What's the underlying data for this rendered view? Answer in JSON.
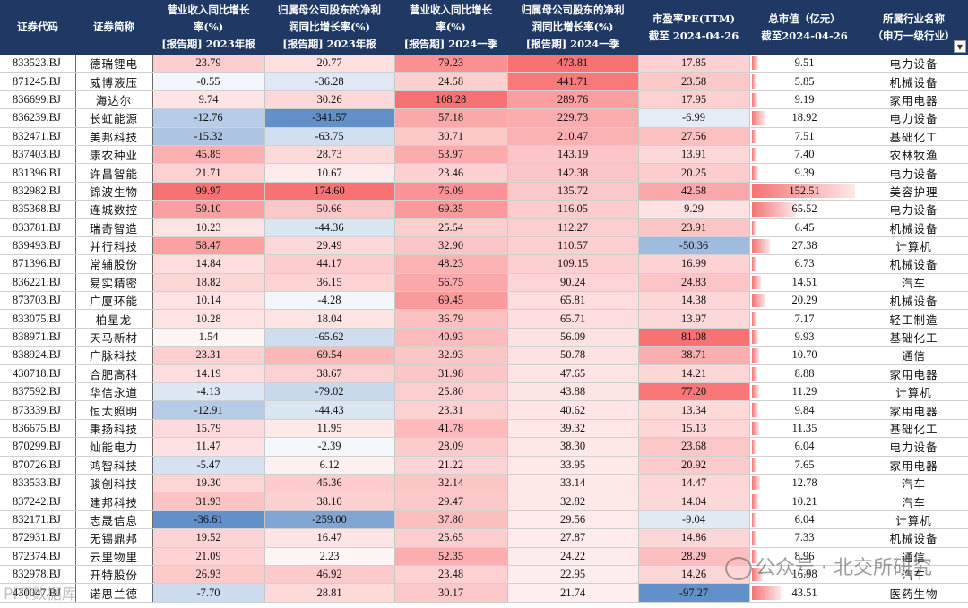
{
  "headers": [
    "证券代码",
    "证券简称",
    "营业收入同比增长率(%) [报告期] 2023年报",
    "归属母公司股东的净利润同比增长率(%) [报告期] 2023年报",
    "营业收入同比增长率(%) [报告期] 2024一季",
    "归属母公司股东的净利润同比增长率(%) [报告期] 2024一季",
    "市盈率PE(TTM) 截至 2024-04-26",
    "总市值（亿元） 截至2024-04-26",
    "所属行业名称 （申万一级行业）"
  ],
  "header_lines": [
    [
      "证券代码"
    ],
    [
      "证券简称"
    ],
    [
      "营业收入同比增长",
      "率(%)",
      "[报告期] 2023年报"
    ],
    [
      "归属母公司股东的净利",
      "润同比增长率(%)",
      "[报告期] 2023年报"
    ],
    [
      "营业收入同比增长",
      "率(%)",
      "[报告期] 2024一季"
    ],
    [
      "归属母公司股东的净利",
      "润同比增长率(%)",
      "[报告期] 2024一季"
    ],
    [
      "市盈率PE(TTM)",
      "截至 2024-04-26"
    ],
    [
      "总市值（亿元）",
      "截至2024-04-26"
    ],
    [
      "所属行业名称",
      "（申万一级行业）"
    ]
  ],
  "colors": {
    "header_bg": "#1f3864",
    "pos": "#f8696b",
    "neg": "#5a8ac6",
    "cap_bar": "#f26b6b"
  },
  "rows": [
    [
      "833523.BJ",
      "德瑞锂电",
      "23.79",
      "20.77",
      "79.23",
      "473.81",
      "17.85",
      "9.51",
      "电力设备"
    ],
    [
      "871245.BJ",
      "威博液压",
      "-0.55",
      "-36.28",
      "24.58",
      "441.71",
      "23.58",
      "5.85",
      "机械设备"
    ],
    [
      "836699.BJ",
      "海达尔",
      "9.74",
      "30.26",
      "108.28",
      "289.76",
      "17.95",
      "9.19",
      "家用电器"
    ],
    [
      "836239.BJ",
      "长虹能源",
      "-12.76",
      "-341.57",
      "57.18",
      "229.73",
      "-6.99",
      "18.92",
      "电力设备"
    ],
    [
      "832471.BJ",
      "美邦科技",
      "-15.32",
      "-63.75",
      "30.71",
      "210.47",
      "27.56",
      "7.51",
      "基础化工"
    ],
    [
      "837403.BJ",
      "康农种业",
      "45.85",
      "28.73",
      "53.97",
      "143.19",
      "13.91",
      "7.40",
      "农林牧渔"
    ],
    [
      "831396.BJ",
      "许昌智能",
      "21.71",
      "10.67",
      "23.46",
      "142.38",
      "20.25",
      "9.39",
      "电力设备"
    ],
    [
      "832982.BJ",
      "锦波生物",
      "99.97",
      "174.60",
      "76.09",
      "135.72",
      "42.58",
      "152.51",
      "美容护理"
    ],
    [
      "835368.BJ",
      "连城数控",
      "59.10",
      "50.66",
      "69.35",
      "116.05",
      "9.29",
      "65.52",
      "电力设备"
    ],
    [
      "833781.BJ",
      "瑞奇智造",
      "10.23",
      "-44.36",
      "25.54",
      "112.27",
      "23.91",
      "6.45",
      "机械设备"
    ],
    [
      "839493.BJ",
      "并行科技",
      "58.47",
      "29.49",
      "32.90",
      "110.57",
      "-50.36",
      "27.38",
      "计算机"
    ],
    [
      "871396.BJ",
      "常辅股份",
      "14.84",
      "44.17",
      "48.23",
      "109.15",
      "16.99",
      "6.73",
      "机械设备"
    ],
    [
      "836221.BJ",
      "易实精密",
      "18.82",
      "36.15",
      "56.75",
      "90.24",
      "24.83",
      "14.51",
      "汽车"
    ],
    [
      "873703.BJ",
      "广厦环能",
      "10.14",
      "-4.28",
      "69.45",
      "65.81",
      "14.38",
      "20.29",
      "机械设备"
    ],
    [
      "833075.BJ",
      "柏星龙",
      "10.28",
      "18.04",
      "36.79",
      "65.71",
      "13.97",
      "7.17",
      "轻工制造"
    ],
    [
      "838971.BJ",
      "天马新材",
      "1.54",
      "-65.62",
      "40.93",
      "56.09",
      "81.08",
      "9.93",
      "基础化工"
    ],
    [
      "838924.BJ",
      "广脉科技",
      "23.31",
      "69.54",
      "32.93",
      "50.78",
      "38.71",
      "10.70",
      "通信"
    ],
    [
      "430718.BJ",
      "合肥高科",
      "14.19",
      "38.67",
      "31.98",
      "47.65",
      "14.21",
      "8.88",
      "家用电器"
    ],
    [
      "837592.BJ",
      "华信永道",
      "-4.13",
      "-79.02",
      "25.80",
      "43.88",
      "77.20",
      "11.29",
      "计算机"
    ],
    [
      "873339.BJ",
      "恒太照明",
      "-12.91",
      "-44.43",
      "23.31",
      "40.62",
      "13.34",
      "9.84",
      "家用电器"
    ],
    [
      "836675.BJ",
      "秉扬科技",
      "15.79",
      "11.95",
      "41.78",
      "39.32",
      "15.13",
      "11.35",
      "基础化工"
    ],
    [
      "870299.BJ",
      "灿能电力",
      "11.47",
      "-2.39",
      "28.09",
      "38.30",
      "23.68",
      "6.04",
      "电力设备"
    ],
    [
      "870726.BJ",
      "鸿智科技",
      "-5.47",
      "6.12",
      "21.22",
      "33.95",
      "20.92",
      "7.65",
      "家用电器"
    ],
    [
      "833533.BJ",
      "骏创科技",
      "19.30",
      "45.36",
      "32.14",
      "33.14",
      "14.47",
      "12.78",
      "汽车"
    ],
    [
      "837242.BJ",
      "建邦科技",
      "31.93",
      "38.10",
      "29.47",
      "32.82",
      "14.04",
      "10.21",
      "汽车"
    ],
    [
      "832171.BJ",
      "志晟信息",
      "-36.61",
      "-259.00",
      "37.80",
      "29.56",
      "-9.04",
      "6.04",
      "计算机"
    ],
    [
      "872931.BJ",
      "无锡鼎邦",
      "19.52",
      "16.47",
      "25.65",
      "27.87",
      "14.86",
      "7.33",
      "机械设备"
    ],
    [
      "872374.BJ",
      "云里物里",
      "21.09",
      "2.23",
      "52.35",
      "24.22",
      "28.29",
      "8.96",
      "通信"
    ],
    [
      "832978.BJ",
      "开特股份",
      "26.93",
      "46.92",
      "23.48",
      "22.95",
      "14.26",
      "16.98",
      "汽车"
    ],
    [
      "430047.BJ",
      "诺思兰德",
      "-7.70",
      "28.81",
      "30.17",
      "21.74",
      "-97.27",
      "43.51",
      "医药生物"
    ]
  ],
  "watermark": "公众号 · 北交所研究",
  "watermark2": "PPT数据库"
}
